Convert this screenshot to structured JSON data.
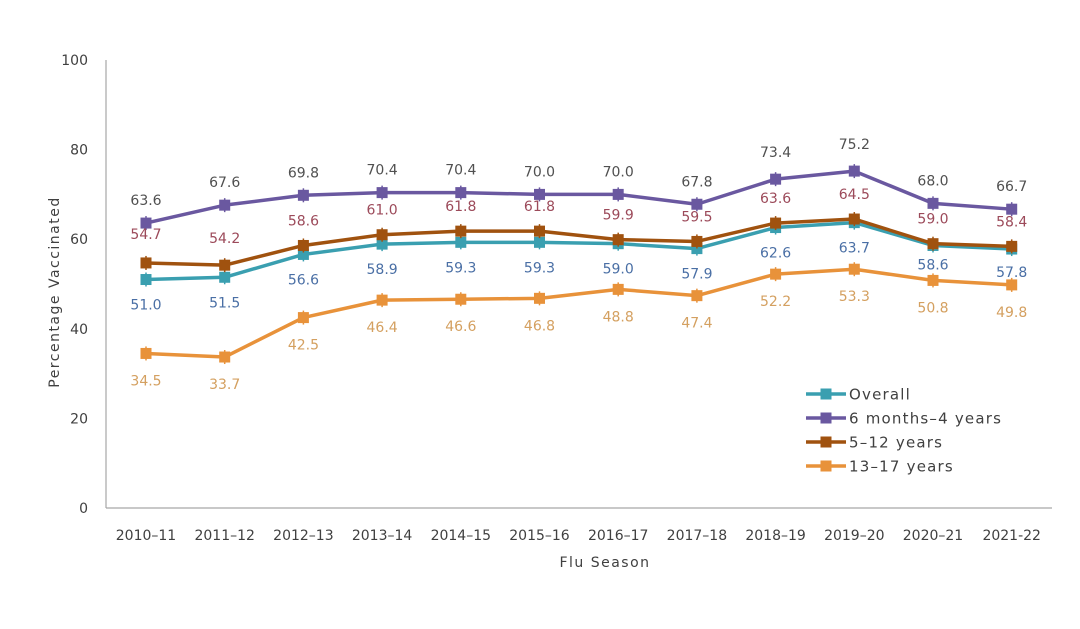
{
  "chart_data": {
    "type": "line",
    "title": "",
    "xlabel": "Flu Season",
    "ylabel": "Percentage Vaccinated",
    "ylim": [
      0,
      100
    ],
    "yticks": [
      0,
      20,
      40,
      60,
      80,
      100
    ],
    "grid": false,
    "legend_position": "bottom-right",
    "categories": [
      "2010–11",
      "2011–12",
      "2012–13",
      "2013–14",
      "2014–15",
      "2015–16",
      "2016–17",
      "2017–18",
      "2018–19",
      "2019–20",
      "2020–21",
      "2021-22"
    ],
    "series": [
      {
        "name": "Overall",
        "color": "#3a9fb0",
        "label_color": "#4a6fa5",
        "values": [
          51.0,
          51.5,
          56.6,
          58.9,
          59.3,
          59.3,
          59.0,
          57.9,
          62.6,
          63.7,
          58.6,
          57.8
        ]
      },
      {
        "name": "6 months–4 years",
        "color": "#6a58a0",
        "label_color": "#505050",
        "values": [
          63.6,
          67.6,
          69.8,
          70.4,
          70.4,
          70.0,
          70.0,
          67.8,
          73.4,
          75.2,
          68.0,
          66.7
        ]
      },
      {
        "name": "5–12 years",
        "color": "#a0520f",
        "label_color": "#9c4a5a",
        "values": [
          54.7,
          54.2,
          58.6,
          61.0,
          61.8,
          61.8,
          59.9,
          59.5,
          63.6,
          64.5,
          59.0,
          58.4
        ]
      },
      {
        "name": "13–17 years",
        "color": "#e8923a",
        "label_color": "#d4a060",
        "values": [
          34.5,
          33.7,
          42.5,
          46.4,
          46.6,
          46.8,
          48.8,
          47.4,
          52.2,
          53.3,
          50.8,
          49.8
        ]
      }
    ]
  }
}
